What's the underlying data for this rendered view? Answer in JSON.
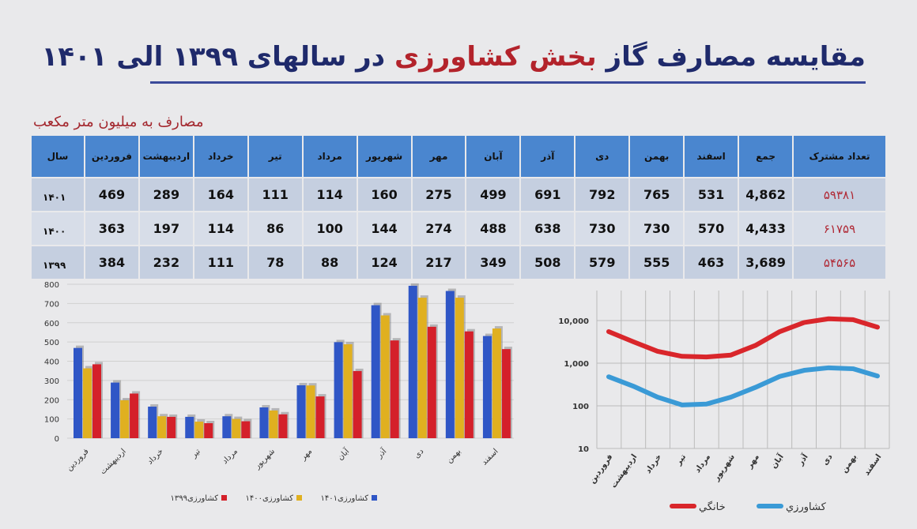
{
  "title": {
    "part1": "مقایسه مصارف گاز ",
    "highlight": "بخش کشاورزی",
    "part2": " در سالهای ۱۳۹۹ الی ۱۴۰۱"
  },
  "unit": "مصارف به میلیون متر مکعب",
  "table": {
    "headers": [
      "سال",
      "فروردین",
      "اردیبهشت",
      "خرداد",
      "تیر",
      "مرداد",
      "شهریور",
      "مهر",
      "آبان",
      "آذر",
      "دی",
      "بهمن",
      "اسفند",
      "جمع",
      "تعداد مشترک"
    ],
    "rows": [
      [
        "۱۴۰۱",
        "469",
        "289",
        "164",
        "111",
        "114",
        "160",
        "275",
        "499",
        "691",
        "792",
        "765",
        "531",
        "4,862",
        "۵۹۳۸۱"
      ],
      [
        "۱۴۰۰",
        "363",
        "197",
        "114",
        "86",
        "100",
        "144",
        "274",
        "488",
        "638",
        "730",
        "730",
        "570",
        "4,433",
        "۶۱۷۵۹"
      ],
      [
        "۱۳۹۹",
        "384",
        "232",
        "111",
        "78",
        "88",
        "124",
        "217",
        "349",
        "508",
        "579",
        "555",
        "463",
        "3,689",
        "۵۴۵۶۵"
      ]
    ]
  },
  "chart_data": [
    {
      "type": "bar",
      "categories": [
        "فروردین",
        "اردیبهشت",
        "خرداد",
        "تیر",
        "مرداد",
        "شهریور",
        "مهر",
        "آبان",
        "آذر",
        "دی",
        "بهمن",
        "اسفند"
      ],
      "ylim": [
        0,
        800
      ],
      "yticks": [
        "0",
        "100",
        "200",
        "300",
        "400",
        "500",
        "600",
        "700",
        "800"
      ],
      "series": [
        {
          "name": "کشاورزی۱۴۰۱",
          "color": "#2f56c6",
          "values": [
            469,
            289,
            164,
            111,
            114,
            160,
            275,
            499,
            691,
            792,
            765,
            531
          ]
        },
        {
          "name": "کشاورزی۱۴۰۰",
          "color": "#e0b020",
          "values": [
            363,
            197,
            114,
            86,
            100,
            144,
            274,
            488,
            638,
            730,
            730,
            570
          ]
        },
        {
          "name": "کشاورزی۱۳۹۹",
          "color": "#d4202a",
          "values": [
            384,
            232,
            111,
            78,
            88,
            124,
            217,
            349,
            508,
            579,
            555,
            463
          ]
        }
      ]
    },
    {
      "type": "line",
      "scale": "log",
      "categories": [
        "فروردین",
        "اردیبهشت",
        "خرداد",
        "تیر",
        "مرداد",
        "شهریور",
        "مهر",
        "آبان",
        "آذر",
        "دی",
        "بهمن",
        "اسفند"
      ],
      "yticks": [
        "10",
        "100",
        "1,000",
        "10,000"
      ],
      "ylim": [
        10,
        50000
      ],
      "series": [
        {
          "name": "خانگي",
          "color": "#d9262b",
          "values": [
            5500,
            3200,
            1900,
            1450,
            1400,
            1550,
            2600,
            5500,
            9000,
            11000,
            10500,
            7000
          ]
        },
        {
          "name": "كشاورزي",
          "color": "#3a9ad6",
          "values": [
            480,
            290,
            160,
            105,
            110,
            160,
            270,
            490,
            680,
            780,
            740,
            500
          ]
        }
      ]
    }
  ]
}
